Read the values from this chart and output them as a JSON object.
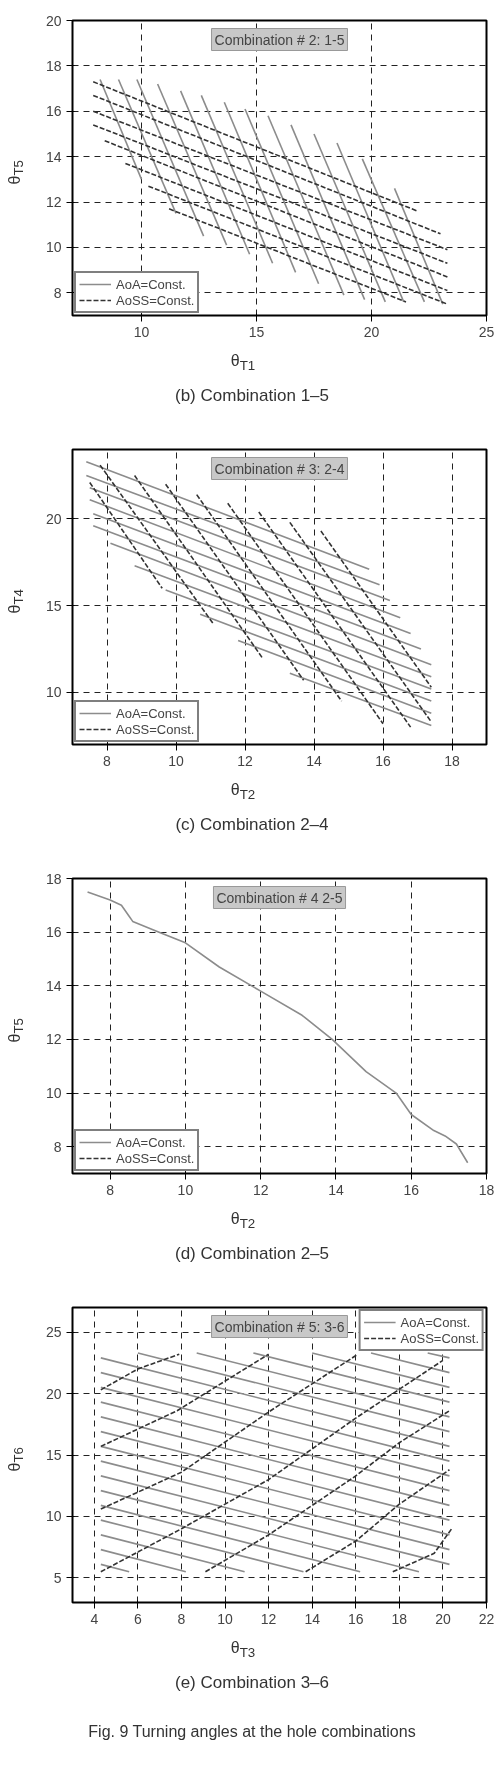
{
  "chart_data": [
    {
      "type": "line",
      "title": "(b) Combination 1–5",
      "xlabel": "θ$_{T1}$",
      "ylabel": "θ$_{T5}$",
      "annotations": [
        "Combination # 2: 1-5"
      ],
      "xlim": [
        7,
        25
      ],
      "xticks": [
        10,
        15,
        20,
        25
      ],
      "ylim": [
        7,
        20
      ],
      "yticks": [
        8,
        10,
        12,
        14,
        16,
        18,
        20
      ],
      "grid": true,
      "legend": "bottom left",
      "series": [
        {
          "name": "AoA=Const.",
          "color": "#8c8c8c",
          "line_style": "solid",
          "x": [
            8.2,
            10.0
          ],
          "values": [
            17.4,
            13.0
          ]
        },
        {
          "color": "#8c8c8c",
          "line_style": "solid",
          "x": [
            9.0,
            11.5
          ],
          "values": [
            17.4,
            11.5
          ]
        },
        {
          "color": "#8c8c8c",
          "line_style": "solid",
          "x": [
            9.8,
            12.7
          ],
          "values": [
            17.4,
            10.5
          ]
        },
        {
          "color": "#8c8c8c",
          "line_style": "solid",
          "x": [
            10.7,
            13.7
          ],
          "values": [
            17.2,
            10.1
          ]
        },
        {
          "color": "#8c8c8c",
          "line_style": "solid",
          "x": [
            11.7,
            14.7
          ],
          "values": [
            16.9,
            9.7
          ]
        },
        {
          "color": "#8c8c8c",
          "line_style": "solid",
          "x": [
            12.6,
            15.7
          ],
          "values": [
            16.7,
            9.3
          ]
        },
        {
          "color": "#8c8c8c",
          "line_style": "solid",
          "x": [
            13.6,
            16.7
          ],
          "values": [
            16.4,
            8.9
          ]
        },
        {
          "color": "#8c8c8c",
          "line_style": "solid",
          "x": [
            14.5,
            17.7
          ],
          "values": [
            16.1,
            8.4
          ]
        },
        {
          "color": "#8c8c8c",
          "line_style": "solid",
          "x": [
            15.5,
            18.8
          ],
          "values": [
            15.8,
            7.9
          ]
        },
        {
          "color": "#8c8c8c",
          "line_style": "solid",
          "x": [
            16.5,
            19.7
          ],
          "values": [
            15.4,
            7.7
          ]
        },
        {
          "color": "#8c8c8c",
          "line_style": "solid",
          "x": [
            17.5,
            20.6
          ],
          "values": [
            15.0,
            7.6
          ]
        },
        {
          "color": "#8c8c8c",
          "line_style": "solid",
          "x": [
            18.5,
            21.4
          ],
          "values": [
            14.6,
            7.6
          ]
        },
        {
          "color": "#8c8c8c",
          "line_style": "solid",
          "x": [
            19.6,
            22.3
          ],
          "values": [
            13.9,
            7.6
          ]
        },
        {
          "color": "#8c8c8c",
          "line_style": "solid",
          "x": [
            21.0,
            23.1
          ],
          "values": [
            12.6,
            7.5
          ]
        },
        {
          "name": "AoSS=Const.",
          "color": "#333333",
          "line_style": "dashed",
          "x": [
            7.9,
            22.0
          ],
          "values": [
            17.3,
            11.6
          ]
        },
        {
          "color": "#333333",
          "line_style": "dashed",
          "x": [
            7.9,
            23.0
          ],
          "values": [
            16.7,
            10.6
          ]
        },
        {
          "color": "#333333",
          "line_style": "dashed",
          "x": [
            7.9,
            23.3
          ],
          "values": [
            16.0,
            9.9
          ]
        },
        {
          "color": "#333333",
          "line_style": "dashed",
          "x": [
            7.9,
            23.3
          ],
          "values": [
            15.4,
            9.3
          ]
        },
        {
          "color": "#333333",
          "line_style": "dashed",
          "x": [
            8.4,
            23.3
          ],
          "values": [
            14.7,
            8.7
          ]
        },
        {
          "color": "#333333",
          "line_style": "dashed",
          "x": [
            9.3,
            23.3
          ],
          "values": [
            13.7,
            8.1
          ]
        },
        {
          "color": "#333333",
          "line_style": "dashed",
          "x": [
            10.3,
            23.3
          ],
          "values": [
            12.7,
            7.5
          ]
        },
        {
          "color": "#333333",
          "line_style": "dashed",
          "x": [
            11.2,
            21.5
          ],
          "values": [
            11.7,
            7.6
          ]
        }
      ]
    },
    {
      "type": "line",
      "title": "(c) Combination 2–4",
      "xlabel": "θ$_{T2}$",
      "ylabel": "θ$_{T4}$",
      "annotations": [
        "Combination # 3: 2-4"
      ],
      "xlim": [
        7,
        19
      ],
      "xticks": [
        8,
        10,
        12,
        14,
        16,
        18
      ],
      "ylim": [
        7,
        24
      ],
      "yticks": [
        10,
        15,
        20
      ],
      "grid": true,
      "legend": "bottom left",
      "series": [
        {
          "name": "AoA=Const.",
          "color": "#8c8c8c",
          "line_style": "solid",
          "x": [
            7.4,
            15.6
          ],
          "values": [
            23.3,
            17.1
          ]
        },
        {
          "color": "#8c8c8c",
          "line_style": "solid",
          "x": [
            7.4,
            15.9
          ],
          "values": [
            22.5,
            16.2
          ]
        },
        {
          "color": "#8c8c8c",
          "line_style": "solid",
          "x": [
            7.5,
            16.2
          ],
          "values": [
            21.8,
            15.3
          ]
        },
        {
          "color": "#8c8c8c",
          "line_style": "solid",
          "x": [
            7.5,
            16.5
          ],
          "values": [
            21.1,
            14.3
          ]
        },
        {
          "color": "#8c8c8c",
          "line_style": "solid",
          "x": [
            7.6,
            16.8
          ],
          "values": [
            20.3,
            13.4
          ]
        },
        {
          "color": "#8c8c8c",
          "line_style": "solid",
          "x": [
            7.6,
            17.1
          ],
          "values": [
            19.6,
            12.5
          ]
        },
        {
          "color": "#8c8c8c",
          "line_style": "solid",
          "x": [
            8.1,
            17.4
          ],
          "values": [
            18.6,
            11.6
          ]
        },
        {
          "color": "#8c8c8c",
          "line_style": "solid",
          "x": [
            8.8,
            17.4
          ],
          "values": [
            17.3,
            10.9
          ]
        },
        {
          "color": "#8c8c8c",
          "line_style": "solid",
          "x": [
            9.7,
            17.4
          ],
          "values": [
            15.9,
            10.2
          ]
        },
        {
          "color": "#8c8c8c",
          "line_style": "solid",
          "x": [
            10.7,
            17.4
          ],
          "values": [
            14.5,
            9.5
          ]
        },
        {
          "color": "#8c8c8c",
          "line_style": "solid",
          "x": [
            11.8,
            17.4
          ],
          "values": [
            13.0,
            8.8
          ]
        },
        {
          "color": "#8c8c8c",
          "line_style": "solid",
          "x": [
            13.3,
            17.4
          ],
          "values": [
            11.1,
            8.1
          ]
        },
        {
          "name": "AoSS=Const.",
          "color": "#333333",
          "line_style": "dashed",
          "x": [
            7.5,
            9.6
          ],
          "values": [
            22.1,
            16.0
          ]
        },
        {
          "color": "#333333",
          "line_style": "dashed",
          "x": [
            7.8,
            11.1
          ],
          "values": [
            23.1,
            13.9
          ]
        },
        {
          "color": "#333333",
          "line_style": "dashed",
          "x": [
            8.8,
            12.5
          ],
          "values": [
            22.5,
            12.0
          ]
        },
        {
          "color": "#333333",
          "line_style": "dashed",
          "x": [
            9.7,
            13.7
          ],
          "values": [
            22.0,
            10.7
          ]
        },
        {
          "color": "#333333",
          "line_style": "dashed",
          "x": [
            10.6,
            14.8
          ],
          "values": [
            21.4,
            9.5
          ]
        },
        {
          "color": "#333333",
          "line_style": "dashed",
          "x": [
            11.5,
            16.0
          ],
          "values": [
            20.9,
            8.2
          ]
        },
        {
          "color": "#333333",
          "line_style": "dashed",
          "x": [
            12.4,
            16.8
          ],
          "values": [
            20.4,
            8.0
          ]
        },
        {
          "color": "#333333",
          "line_style": "dashed",
          "x": [
            13.3,
            17.4
          ],
          "values": [
            19.8,
            8.3
          ]
        },
        {
          "color": "#333333",
          "line_style": "dashed",
          "x": [
            14.2,
            17.4
          ],
          "values": [
            19.3,
            10.3
          ]
        }
      ]
    },
    {
      "type": "line",
      "title": "(d) Combination 2–5",
      "xlabel": "θ$_{T2}$",
      "ylabel": "θ$_{T5}$",
      "annotations": [
        "Combination # 4 2-5"
      ],
      "xlim": [
        7,
        18
      ],
      "xticks": [
        8,
        10,
        12,
        14,
        16,
        18
      ],
      "ylim": [
        7,
        18
      ],
      "yticks": [
        8,
        10,
        12,
        14,
        16,
        18
      ],
      "grid": true,
      "legend": "bottom left",
      "series": [
        {
          "name": "AoA=Const.",
          "color": "#8c8c8c",
          "line_style": "solid",
          "x": [
            7.4,
            8.0,
            8.3,
            8.5,
            8.6,
            9.3,
            10.0,
            10.9,
            12.0,
            13.1,
            13.9,
            14.8,
            15.6,
            16.0,
            16.6,
            16.9,
            17.2,
            17.5
          ],
          "values": [
            17.5,
            17.2,
            17.0,
            16.6,
            16.4,
            16.0,
            15.6,
            14.7,
            13.8,
            12.9,
            12.0,
            10.8,
            10.0,
            9.2,
            8.6,
            8.4,
            8.1,
            7.4
          ]
        },
        {
          "name": "AoSS=Const.",
          "color": "#333333",
          "line_style": "dashed",
          "x": [
            null
          ],
          "values": [
            null
          ]
        }
      ]
    },
    {
      "type": "line",
      "title": "(e) Combination 3–6",
      "xlabel": "θ$_{T3}$",
      "ylabel": "θ$_{T6}$",
      "annotations": [
        "Combination # 5: 3-6",
        "Fig.  9  Turning angles at the hole combinations"
      ],
      "xlim": [
        3,
        22
      ],
      "xticks": [
        4,
        6,
        8,
        10,
        12,
        14,
        16,
        18,
        20,
        22
      ],
      "ylim": [
        3,
        27
      ],
      "yticks": [
        5,
        10,
        15,
        20,
        25
      ],
      "grid": true,
      "legend": "top right",
      "series": [
        {
          "name": "AoA=Const.",
          "color": "#8c8c8c",
          "line_style": "solid",
          "x": [
            4.3,
            5.6
          ],
          "values": [
            6.1,
            5.5
          ]
        },
        {
          "color": "#8c8c8c",
          "line_style": "solid",
          "x": [
            4.3,
            8.2
          ],
          "values": [
            7.3,
            5.5
          ]
        },
        {
          "color": "#8c8c8c",
          "line_style": "solid",
          "x": [
            4.3,
            10.9
          ],
          "values": [
            8.5,
            5.5
          ]
        },
        {
          "color": "#8c8c8c",
          "line_style": "solid",
          "x": [
            4.3,
            13.6
          ],
          "values": [
            9.7,
            5.5
          ]
        },
        {
          "color": "#8c8c8c",
          "line_style": "solid",
          "x": [
            4.3,
            16.2
          ],
          "values": [
            10.9,
            5.5
          ]
        },
        {
          "color": "#8c8c8c",
          "line_style": "solid",
          "x": [
            4.3,
            18.9
          ],
          "values": [
            12.1,
            5.5
          ]
        },
        {
          "color": "#8c8c8c",
          "line_style": "solid",
          "x": [
            4.3,
            20.3
          ],
          "values": [
            13.3,
            6.1
          ]
        },
        {
          "color": "#8c8c8c",
          "line_style": "solid",
          "x": [
            4.3,
            20.3
          ],
          "values": [
            14.5,
            7.3
          ]
        },
        {
          "color": "#8c8c8c",
          "line_style": "solid",
          "x": [
            4.3,
            20.3
          ],
          "values": [
            15.7,
            8.5
          ]
        },
        {
          "color": "#8c8c8c",
          "line_style": "solid",
          "x": [
            4.3,
            20.3
          ],
          "values": [
            16.9,
            9.7
          ]
        },
        {
          "color": "#8c8c8c",
          "line_style": "solid",
          "x": [
            4.3,
            20.3
          ],
          "values": [
            18.1,
            10.9
          ]
        },
        {
          "color": "#8c8c8c",
          "line_style": "solid",
          "x": [
            4.3,
            20.3
          ],
          "values": [
            19.3,
            12.1
          ]
        },
        {
          "color": "#8c8c8c",
          "line_style": "solid",
          "x": [
            4.3,
            20.3
          ],
          "values": [
            20.5,
            13.3
          ]
        },
        {
          "color": "#8c8c8c",
          "line_style": "solid",
          "x": [
            4.3,
            20.3
          ],
          "values": [
            21.7,
            14.5
          ]
        },
        {
          "color": "#8c8c8c",
          "line_style": "solid",
          "x": [
            4.3,
            20.3
          ],
          "values": [
            22.9,
            15.7
          ]
        },
        {
          "color": "#8c8c8c",
          "line_style": "solid",
          "x": [
            6.0,
            20.3
          ],
          "values": [
            23.3,
            16.9
          ]
        },
        {
          "color": "#8c8c8c",
          "line_style": "solid",
          "x": [
            8.7,
            20.3
          ],
          "values": [
            23.3,
            18.1
          ]
        },
        {
          "color": "#8c8c8c",
          "line_style": "solid",
          "x": [
            11.3,
            20.3
          ],
          "values": [
            23.3,
            19.3
          ]
        },
        {
          "color": "#8c8c8c",
          "line_style": "solid",
          "x": [
            14.0,
            20.3
          ],
          "values": [
            23.3,
            20.5
          ]
        },
        {
          "color": "#8c8c8c",
          "line_style": "solid",
          "x": [
            16.7,
            20.3
          ],
          "values": [
            23.3,
            21.7
          ]
        },
        {
          "color": "#8c8c8c",
          "line_style": "solid",
          "x": [
            19.3,
            20.3
          ],
          "values": [
            23.3,
            22.9
          ]
        },
        {
          "name": "AoSS=Const.",
          "color": "#333333",
          "line_style": "dashed",
          "x": [
            4.3,
            6.0,
            7.9
          ],
          "values": [
            20.3,
            22.0,
            23.2
          ]
        },
        {
          "color": "#333333",
          "line_style": "dashed",
          "x": [
            4.3,
            7.8,
            12.0
          ],
          "values": [
            15.7,
            18.6,
            23.2
          ]
        },
        {
          "color": "#333333",
          "line_style": "dashed",
          "x": [
            4.3,
            8.0,
            12.0,
            16.1
          ],
          "values": [
            10.6,
            13.6,
            18.5,
            23.2
          ]
        },
        {
          "color": "#333333",
          "line_style": "dashed",
          "x": [
            4.3,
            8.0,
            12.0,
            16.0,
            20.0
          ],
          "values": [
            5.5,
            9.0,
            13.0,
            18.0,
            22.7
          ]
        },
        {
          "color": "#333333",
          "line_style": "dashed",
          "x": [
            9.1,
            12.0,
            16.0,
            18.0,
            20.3
          ],
          "values": [
            5.5,
            8.5,
            13.3,
            16.0,
            18.6
          ]
        },
        {
          "color": "#333333",
          "line_style": "dashed",
          "x": [
            13.7,
            16.0,
            18.0,
            20.3
          ],
          "values": [
            5.5,
            8.0,
            11.0,
            13.8
          ]
        },
        {
          "color": "#333333",
          "line_style": "dashed",
          "x": [
            17.7,
            19.6,
            20.4
          ],
          "values": [
            5.5,
            7.0,
            9.0
          ]
        }
      ]
    }
  ]
}
